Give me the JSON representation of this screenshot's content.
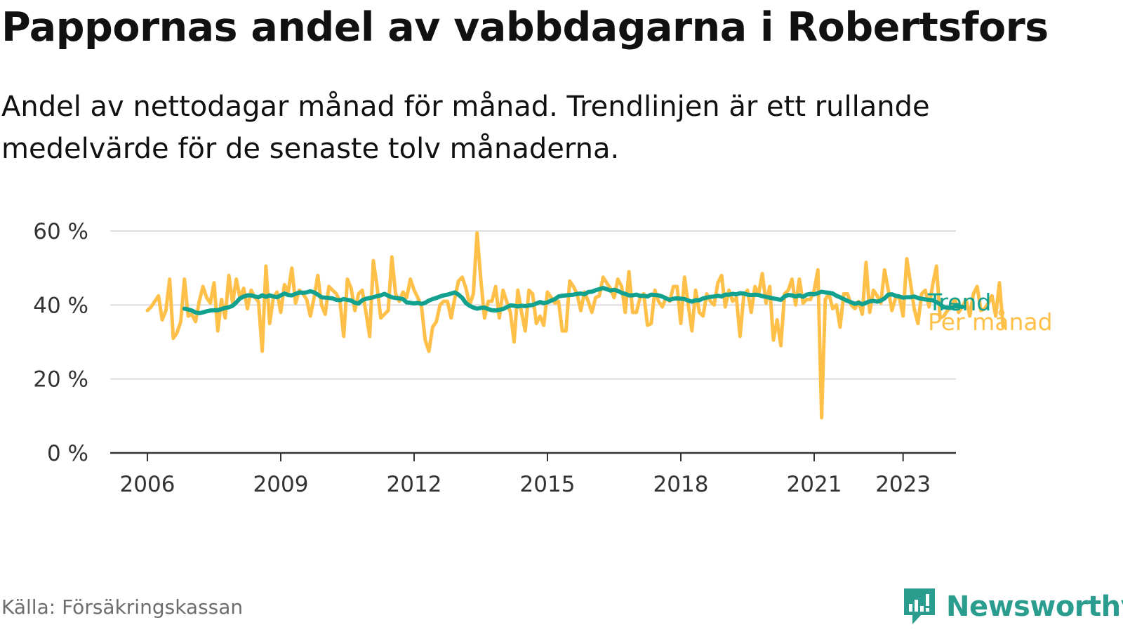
{
  "title": "Pappornas andel av vabbdagarna i Robertsfors",
  "subtitle": "Andel av nettodagar månad för månad. Trendlinjen är ett rullande medelvärde för de senaste tolv månaderna.",
  "source": "Källa: Försäkringskassan",
  "brand": {
    "name": "Newsworthy",
    "icon": "newsworthy-logo-icon"
  },
  "colors": {
    "trend": "#12a08f",
    "monthly": "#ffc04a",
    "axis": "#333333",
    "grid": "#dddddd",
    "text": "#111111",
    "source": "#6d6d6d",
    "brand": "#2a9d8f"
  },
  "chart_data": {
    "type": "line",
    "x_unit": "month index from January 2006",
    "y_unit": "percent",
    "ylim": [
      0,
      60
    ],
    "yticks": [
      0,
      20,
      40,
      60
    ],
    "ytick_labels": [
      "0 %",
      "20 %",
      "40 %",
      "60 %"
    ],
    "xticks": [
      0,
      36,
      72,
      108,
      144,
      180,
      204
    ],
    "xtick_labels": [
      "2006",
      "2009",
      "2012",
      "2015",
      "2018",
      "2021",
      "2023"
    ],
    "grid": true,
    "legend": "right, inline labels at line ends",
    "series": [
      {
        "name": "Trend",
        "start_month": 10,
        "values": [
          39.0,
          38.8,
          38.5,
          38.0,
          37.8,
          38.0,
          38.3,
          38.5,
          38.6,
          38.6,
          38.9,
          39.2,
          39.4,
          39.8,
          40.7,
          41.8,
          42.3,
          42.6,
          42.6,
          42.3,
          42.1,
          42.6,
          42.2,
          42.6,
          42.3,
          42.1,
          42.6,
          43.1,
          42.7,
          42.6,
          43.0,
          43.4,
          43.3,
          43.4,
          43.7,
          43.4,
          42.8,
          42.1,
          42.0,
          41.9,
          41.8,
          41.4,
          41.3,
          41.6,
          41.4,
          41.2,
          40.6,
          40.4,
          41.3,
          41.7,
          41.9,
          42.1,
          42.4,
          42.6,
          43.0,
          42.5,
          42.1,
          41.9,
          41.8,
          41.6,
          40.7,
          40.6,
          40.4,
          40.6,
          40.3,
          40.6,
          41.2,
          41.6,
          41.9,
          42.3,
          42.6,
          42.8,
          43.1,
          43.4,
          42.8,
          41.9,
          40.5,
          39.8,
          39.3,
          39.0,
          39.2,
          39.3,
          38.9,
          38.6,
          38.5,
          38.7,
          38.9,
          39.4,
          39.9,
          39.8,
          39.6,
          39.8,
          39.7,
          39.9,
          40.0,
          40.4,
          40.8,
          40.5,
          40.7,
          41.2,
          41.6,
          42.3,
          42.5,
          42.6,
          42.7,
          42.8,
          43.0,
          43.1,
          42.9,
          43.5,
          43.6,
          44.0,
          44.3,
          44.6,
          44.3,
          43.9,
          44.1,
          43.8,
          43.3,
          43.0,
          42.6,
          42.6,
          42.8,
          42.5,
          42.5,
          42.3,
          42.8,
          42.7,
          42.6,
          42.3,
          41.8,
          41.4,
          41.7,
          41.8,
          41.7,
          41.6,
          41.2,
          40.9,
          41.3,
          41.3,
          41.8,
          42.0,
          42.2,
          42.3,
          42.5,
          42.3,
          42.8,
          42.8,
          43.0,
          42.9,
          43.2,
          43.1,
          42.8,
          42.7,
          42.8,
          42.7,
          42.4,
          42.2,
          42.0,
          41.8,
          41.6,
          41.4,
          42.3,
          42.7,
          42.6,
          42.3,
          42.6,
          42.2,
          42.8,
          43.0,
          42.9,
          43.2,
          43.6,
          43.4,
          43.3,
          43.1,
          42.5,
          42.1,
          41.6,
          41.1,
          40.7,
          40.3,
          40.6,
          40.2,
          40.6,
          41.0,
          41.1,
          40.9,
          41.2,
          41.8,
          42.8,
          42.9,
          42.5,
          42.3,
          42.0,
          42.1,
          42.1,
          42.3,
          41.9,
          41.7,
          41.5,
          41.4,
          41.3,
          40.8,
          40.2,
          39.4,
          39.3,
          39.2,
          39.6,
          39.6,
          39.5
        ]
      },
      {
        "name": "Per månad",
        "start_month": 0,
        "values": [
          38.5,
          39.5,
          41.0,
          42.5,
          36.0,
          38.5,
          47.0,
          31.0,
          32.5,
          35.5,
          47.0,
          37.0,
          37.5,
          35.5,
          41.0,
          45.0,
          42.0,
          40.5,
          46.0,
          33.0,
          41.5,
          36.5,
          48.0,
          40.5,
          47.0,
          42.0,
          44.5,
          39.0,
          44.0,
          42.0,
          41.0,
          27.5,
          50.5,
          35.0,
          42.0,
          43.5,
          38.0,
          45.5,
          43.5,
          50.0,
          40.5,
          44.0,
          43.0,
          41.5,
          37.0,
          42.0,
          48.0,
          40.0,
          37.5,
          45.0,
          44.0,
          43.0,
          41.0,
          31.5,
          47.0,
          44.5,
          38.5,
          43.0,
          44.0,
          38.0,
          31.5,
          52.0,
          45.0,
          36.5,
          37.5,
          38.5,
          53.0,
          43.0,
          41.0,
          43.5,
          42.0,
          47.0,
          44.0,
          42.0,
          39.5,
          30.5,
          27.5,
          34.0,
          35.5,
          40.0,
          41.0,
          41.0,
          36.5,
          42.0,
          46.5,
          47.5,
          44.5,
          40.0,
          43.0,
          59.5,
          47.0,
          36.5,
          41.0,
          41.0,
          45.0,
          36.5,
          44.0,
          41.0,
          38.0,
          30.0,
          44.0,
          38.0,
          33.0,
          44.0,
          43.0,
          35.0,
          37.0,
          34.5,
          43.5,
          42.0,
          40.5,
          41.0,
          33.0,
          33.0,
          46.5,
          45.0,
          43.0,
          38.5,
          43.5,
          41.0,
          38.0,
          42.0,
          42.5,
          47.5,
          46.0,
          44.5,
          42.0,
          47.0,
          45.0,
          38.0,
          49.0,
          38.0,
          38.0,
          42.0,
          43.0,
          34.5,
          35.0,
          44.0,
          41.0,
          39.5,
          42.0,
          41.0,
          45.0,
          45.0,
          35.0,
          47.5,
          40.0,
          33.0,
          44.0,
          38.0,
          37.0,
          43.0,
          41.0,
          40.0,
          46.0,
          48.0,
          39.5,
          44.0,
          41.0,
          42.0,
          31.5,
          42.5,
          44.0,
          38.0,
          45.0,
          43.0,
          48.5,
          40.5,
          45.0,
          30.5,
          36.0,
          29.0,
          43.0,
          44.0,
          47.0,
          40.0,
          47.0,
          40.5,
          41.5,
          41.5,
          44.0,
          49.5,
          9.5,
          41.5,
          43.0,
          39.0,
          40.0,
          34.0,
          43.0,
          43.0,
          40.0,
          39.0,
          41.0,
          37.5,
          51.5,
          38.0,
          44.0,
          42.5,
          40.5,
          49.5,
          44.0,
          38.5,
          42.0,
          42.0,
          37.0,
          52.5,
          46.0,
          39.0,
          35.0,
          43.0,
          44.0,
          39.5,
          45.5,
          50.5,
          36.5,
          37.0,
          38.5,
          39.5,
          41.5,
          38.0,
          39.5,
          41.5,
          37.0,
          43.0,
          45.0,
          38.5,
          39.0,
          40.5,
          42.5,
          37.0,
          46.0,
          34.0
        ]
      }
    ]
  }
}
